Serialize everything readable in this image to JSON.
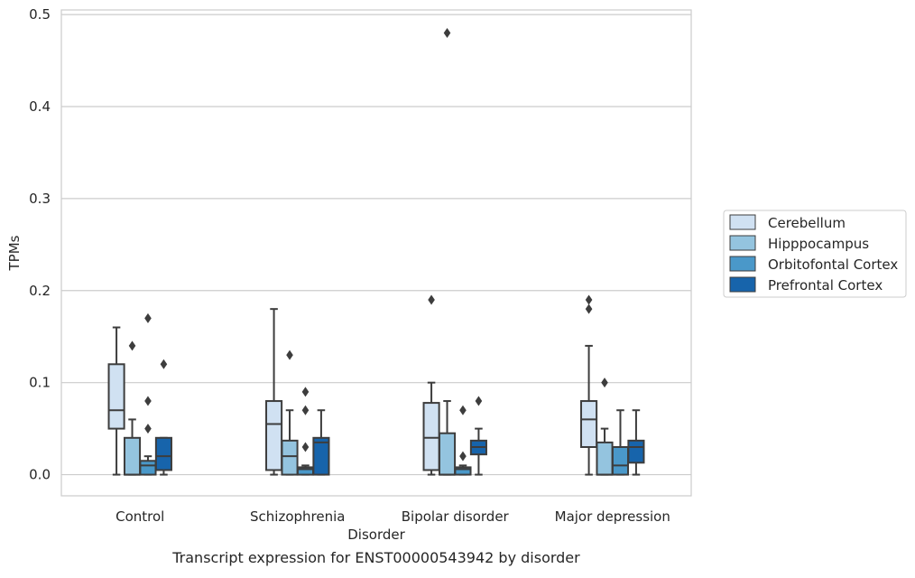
{
  "chart_data": {
    "type": "box",
    "title": "",
    "caption": "Transcript expression for ENST00000543942 by disorder",
    "xlabel": "Disorder",
    "ylabel": "TPMs",
    "ylim": [
      -0.023,
      0.505
    ],
    "yticks": [
      "0.0",
      "0.1",
      "0.2",
      "0.3",
      "0.4",
      "0.5"
    ],
    "grid": "horizontal",
    "legend_position": "right",
    "categories": [
      "Control",
      "Schizophrenia",
      "Bipolar disorder",
      "Major depression"
    ],
    "series": [
      {
        "name": "Cerebellum",
        "color": "#d0e1f2",
        "boxes": [
          {
            "min": 0.0,
            "q1": 0.05,
            "median": 0.07,
            "q3": 0.12,
            "max": 0.16,
            "outliers": []
          },
          {
            "min": 0.0,
            "q1": 0.005,
            "median": 0.055,
            "q3": 0.08,
            "max": 0.18,
            "outliers": []
          },
          {
            "min": 0.0,
            "q1": 0.005,
            "median": 0.04,
            "q3": 0.078,
            "max": 0.1,
            "outliers": [
              0.19
            ]
          },
          {
            "min": 0.0,
            "q1": 0.03,
            "median": 0.06,
            "q3": 0.08,
            "max": 0.14,
            "outliers": [
              0.18,
              0.19
            ]
          }
        ]
      },
      {
        "name": "Hipppocampus",
        "color": "#94c4df",
        "boxes": [
          {
            "min": 0.0,
            "q1": 0.0,
            "median": 0.0,
            "q3": 0.04,
            "max": 0.06,
            "outliers": [
              0.14
            ]
          },
          {
            "min": 0.0,
            "q1": 0.0,
            "median": 0.02,
            "q3": 0.037,
            "max": 0.07,
            "outliers": [
              0.13
            ]
          },
          {
            "min": 0.0,
            "q1": 0.0,
            "median": 0.0,
            "q3": 0.045,
            "max": 0.08,
            "outliers": [
              0.48
            ]
          },
          {
            "min": 0.0,
            "q1": 0.0,
            "median": 0.0,
            "q3": 0.035,
            "max": 0.05,
            "outliers": [
              0.1
            ]
          }
        ]
      },
      {
        "name": "Orbitofontal Cortex",
        "color": "#4a98c9",
        "boxes": [
          {
            "min": 0.0,
            "q1": 0.0,
            "median": 0.01,
            "q3": 0.015,
            "max": 0.02,
            "outliers": [
              0.05,
              0.08,
              0.17
            ]
          },
          {
            "min": 0.0,
            "q1": 0.0,
            "median": 0.006,
            "q3": 0.008,
            "max": 0.01,
            "outliers": [
              0.03,
              0.07,
              0.09
            ]
          },
          {
            "min": 0.0,
            "q1": 0.0,
            "median": 0.006,
            "q3": 0.008,
            "max": 0.01,
            "outliers": [
              0.02,
              0.07
            ]
          },
          {
            "min": 0.0,
            "q1": 0.0,
            "median": 0.01,
            "q3": 0.03,
            "max": 0.07,
            "outliers": []
          }
        ]
      },
      {
        "name": "Prefrontal Cortex",
        "color": "#1764ab",
        "boxes": [
          {
            "min": 0.0,
            "q1": 0.005,
            "median": 0.02,
            "q3": 0.04,
            "max": 0.04,
            "outliers": [
              0.12
            ]
          },
          {
            "min": 0.0,
            "q1": 0.0,
            "median": 0.035,
            "q3": 0.04,
            "max": 0.07,
            "outliers": []
          },
          {
            "min": 0.0,
            "q1": 0.022,
            "median": 0.03,
            "q3": 0.037,
            "max": 0.05,
            "outliers": [
              0.08
            ]
          },
          {
            "min": 0.0,
            "q1": 0.013,
            "median": 0.03,
            "q3": 0.037,
            "max": 0.07,
            "outliers": []
          }
        ]
      }
    ]
  }
}
